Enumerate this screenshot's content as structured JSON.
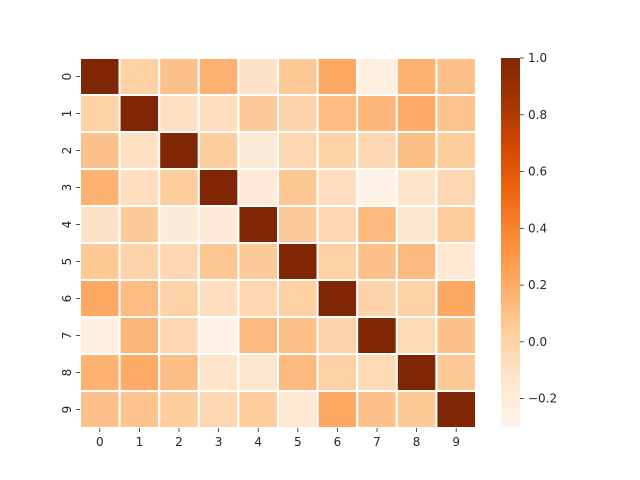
{
  "chart_data": {
    "type": "heatmap",
    "title": "",
    "xlabel": "",
    "ylabel": "",
    "x_categories": [
      "0",
      "1",
      "2",
      "3",
      "4",
      "5",
      "6",
      "7",
      "8",
      "9"
    ],
    "y_categories": [
      "0",
      "1",
      "2",
      "3",
      "4",
      "5",
      "6",
      "7",
      "8",
      "9"
    ],
    "values": [
      [
        1.0,
        0.02,
        0.09,
        0.17,
        -0.11,
        0.06,
        0.21,
        -0.24,
        0.17,
        0.1
      ],
      [
        0.02,
        1.0,
        -0.1,
        -0.08,
        0.05,
        0.0,
        0.12,
        0.15,
        0.2,
        0.08
      ],
      [
        0.09,
        -0.1,
        1.0,
        0.04,
        -0.19,
        -0.03,
        0.01,
        -0.03,
        0.11,
        0.04
      ],
      [
        0.17,
        -0.08,
        0.04,
        1.0,
        -0.18,
        0.07,
        -0.08,
        -0.28,
        -0.12,
        -0.03
      ],
      [
        -0.11,
        0.05,
        -0.19,
        -0.18,
        1.0,
        0.05,
        -0.03,
        0.13,
        -0.15,
        0.04
      ],
      [
        0.06,
        0.0,
        -0.03,
        0.07,
        0.05,
        1.0,
        0.02,
        0.1,
        0.13,
        -0.16
      ],
      [
        0.21,
        0.12,
        0.01,
        -0.08,
        -0.03,
        0.02,
        1.0,
        0.0,
        0.02,
        0.21
      ],
      [
        -0.24,
        0.15,
        -0.03,
        -0.28,
        0.13,
        0.1,
        0.0,
        1.0,
        -0.05,
        0.09
      ],
      [
        0.17,
        0.2,
        0.11,
        -0.12,
        -0.15,
        0.13,
        0.02,
        -0.05,
        1.0,
        0.06
      ],
      [
        0.1,
        0.08,
        0.04,
        -0.03,
        0.04,
        -0.16,
        0.21,
        0.09,
        0.06,
        1.0
      ]
    ],
    "vmin": -0.3,
    "vmax": 1.0,
    "colormap": "Oranges",
    "grid": true,
    "cell_separator_color": "#ffffff",
    "colorbar": {
      "position": "right",
      "ticks": [
        -0.2,
        0.0,
        0.2,
        0.4,
        0.6,
        0.8,
        1.0
      ],
      "tick_labels": [
        "−0.2",
        "0.0",
        "0.2",
        "0.4",
        "0.6",
        "0.8",
        "1.0"
      ]
    },
    "colors": [
      "#fff5eb",
      "#fee6ce",
      "#fdd0a2",
      "#fdae6b",
      "#fd8d3c",
      "#f16913",
      "#d94801",
      "#a63603",
      "#7f2704"
    ]
  }
}
